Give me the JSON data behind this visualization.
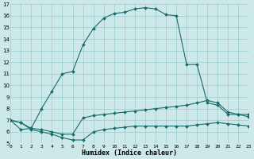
{
  "xlabel": "Humidex (Indice chaleur)",
  "bg_color": "#cce8e8",
  "grid_color": "#99cccc",
  "line_color": "#1a6b6b",
  "xlim": [
    0,
    23
  ],
  "ylim": [
    5,
    17
  ],
  "xticks": [
    0,
    1,
    2,
    3,
    4,
    5,
    6,
    7,
    8,
    9,
    10,
    11,
    12,
    13,
    14,
    15,
    16,
    17,
    18,
    19,
    20,
    21,
    22,
    23
  ],
  "yticks": [
    5,
    6,
    7,
    8,
    9,
    10,
    11,
    12,
    13,
    14,
    15,
    16,
    17
  ],
  "series_main_x": [
    0,
    1,
    2,
    3,
    4,
    5,
    6,
    7,
    8,
    9,
    10,
    11,
    12,
    13,
    14,
    15,
    16,
    17,
    18,
    19,
    20,
    21,
    22,
    23
  ],
  "series_main_y": [
    7.0,
    6.2,
    6.3,
    8.0,
    9.5,
    11.0,
    11.2,
    13.5,
    14.9,
    15.8,
    16.2,
    16.3,
    16.6,
    16.7,
    16.6,
    16.1,
    16.0,
    11.8,
    11.8,
    8.5,
    8.3,
    7.5,
    7.5,
    7.3
  ],
  "series_mid_x": [
    0,
    1,
    2,
    3,
    4,
    5,
    6,
    7,
    8,
    9,
    10,
    11,
    12,
    13,
    14,
    15,
    16,
    17,
    18,
    19,
    20,
    21,
    22,
    23
  ],
  "series_mid_y": [
    7.0,
    6.8,
    6.3,
    6.2,
    6.0,
    5.8,
    5.8,
    7.2,
    7.4,
    7.5,
    7.6,
    7.7,
    7.8,
    7.9,
    8.0,
    8.1,
    8.2,
    8.3,
    8.5,
    8.7,
    8.5,
    7.7,
    7.5,
    7.5
  ],
  "series_low_x": [
    0,
    1,
    2,
    3,
    4,
    5,
    6,
    7,
    8,
    9,
    10,
    11,
    12,
    13,
    14,
    15,
    16,
    17,
    18,
    19,
    20,
    21,
    22,
    23
  ],
  "series_low_y": [
    7.0,
    6.8,
    6.2,
    6.0,
    5.8,
    5.5,
    5.3,
    5.3,
    6.0,
    6.2,
    6.3,
    6.4,
    6.5,
    6.5,
    6.5,
    6.5,
    6.5,
    6.5,
    6.6,
    6.7,
    6.8,
    6.7,
    6.6,
    6.5
  ]
}
